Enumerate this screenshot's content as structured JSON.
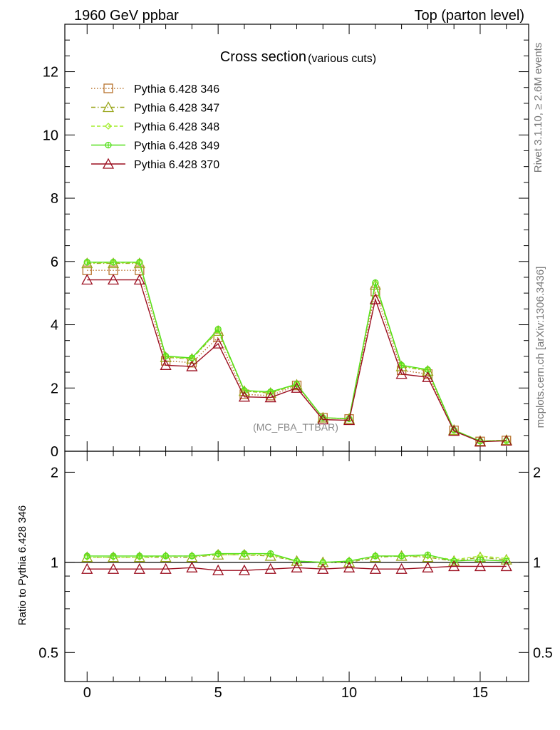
{
  "header": {
    "left": "1960 GeV ppbar",
    "right": "Top (parton level)"
  },
  "side_text": {
    "top": "Rivet 3.1.10, ≥ 2.6M events",
    "bottom": "mcplots.cern.ch [arXiv:1306.3436]"
  },
  "chart_data": {
    "type": "line",
    "title": "Cross section",
    "subtitle": "(various cuts)",
    "watermark": "(MC_FBA_TTBAR)",
    "xlabel": "",
    "ylabel": "",
    "ratio_ylabel": "Ratio to Pythia 6.428 346",
    "xlim": [
      -0.85,
      16.85
    ],
    "ylim": [
      0,
      13.5
    ],
    "ratio_ylim": [
      0.4,
      2.35
    ],
    "ratio_scale": "log",
    "x_ticks": [
      "0",
      "5",
      "10",
      "15"
    ],
    "y_ticks": [
      "0",
      "2",
      "4",
      "6",
      "8",
      "10",
      "12"
    ],
    "ratio_ticks": [
      "0.5",
      "1",
      "2"
    ],
    "legend_position": "top-left",
    "x": [
      0,
      1,
      2,
      3,
      4,
      5,
      6,
      7,
      8,
      9,
      10,
      11,
      12,
      13,
      14,
      15,
      16
    ],
    "series": [
      {
        "name": "Pythia 6.428 346",
        "color": "#b8742e",
        "dash": "dotted",
        "marker": "square",
        "values": [
          5.72,
          5.72,
          5.72,
          2.86,
          2.8,
          3.6,
          1.8,
          1.76,
          2.08,
          1.06,
          1.02,
          5.05,
          2.56,
          2.44,
          0.66,
          0.31,
          0.34
        ],
        "ratio": [
          1.0,
          1.0,
          1.0,
          1.0,
          1.0,
          1.0,
          1.0,
          1.0,
          1.0,
          1.0,
          1.0,
          1.0,
          1.0,
          1.0,
          1.0,
          1.0,
          1.0
        ]
      },
      {
        "name": "Pythia 6.428 347",
        "color": "#99a61a",
        "dash": "dashdot",
        "marker": "triangle",
        "values": [
          5.94,
          5.94,
          5.94,
          2.97,
          2.92,
          3.8,
          1.9,
          1.84,
          2.1,
          1.06,
          1.02,
          5.26,
          2.68,
          2.54,
          0.67,
          0.32,
          0.35
        ],
        "ratio": [
          1.04,
          1.04,
          1.04,
          1.04,
          1.04,
          1.06,
          1.06,
          1.05,
          1.01,
          1.0,
          1.0,
          1.04,
          1.05,
          1.04,
          1.01,
          1.04,
          1.02
        ]
      },
      {
        "name": "Pythia 6.428 348",
        "color": "#a3ed2c",
        "dash": "dashed",
        "marker": "diamond",
        "values": [
          5.96,
          5.96,
          5.96,
          2.99,
          2.93,
          3.83,
          1.91,
          1.86,
          2.11,
          1.06,
          1.03,
          5.3,
          2.7,
          2.56,
          0.67,
          0.32,
          0.35
        ],
        "ratio": [
          1.04,
          1.04,
          1.04,
          1.05,
          1.05,
          1.06,
          1.06,
          1.06,
          1.01,
          1.0,
          1.01,
          1.05,
          1.05,
          1.05,
          1.02,
          1.05,
          1.03
        ]
      },
      {
        "name": "Pythia 6.428 349",
        "color": "#55e01c",
        "dash": "solid",
        "marker": "circle",
        "values": [
          5.98,
          5.98,
          5.98,
          3.01,
          2.95,
          3.86,
          1.92,
          1.88,
          2.12,
          1.06,
          1.03,
          5.33,
          2.72,
          2.58,
          0.67,
          0.32,
          0.34
        ],
        "ratio": [
          1.05,
          1.05,
          1.05,
          1.05,
          1.05,
          1.07,
          1.07,
          1.07,
          1.01,
          1.0,
          1.01,
          1.05,
          1.05,
          1.06,
          1.01,
          1.02,
          1.01
        ]
      },
      {
        "name": "Pythia 6.428 370",
        "color": "#9b0d1e",
        "dash": "solid",
        "marker": "triangle",
        "values": [
          5.42,
          5.42,
          5.42,
          2.72,
          2.68,
          3.4,
          1.72,
          1.7,
          2.0,
          1.0,
          0.98,
          4.8,
          2.44,
          2.34,
          0.64,
          0.3,
          0.33
        ],
        "ratio": [
          0.95,
          0.95,
          0.95,
          0.95,
          0.96,
          0.94,
          0.94,
          0.95,
          0.96,
          0.95,
          0.96,
          0.95,
          0.95,
          0.96,
          0.97,
          0.97,
          0.97
        ]
      }
    ]
  }
}
